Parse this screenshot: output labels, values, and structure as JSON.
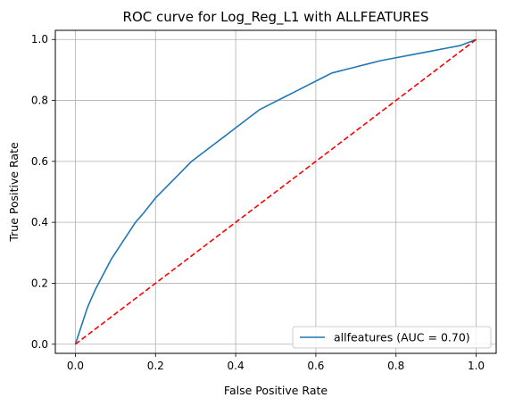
{
  "chart_data": {
    "type": "line",
    "title": "ROC curve for Log_Reg_L1 with ALLFEATURES",
    "xlabel": "False Positive Rate",
    "ylabel": "True Positive Rate",
    "xlim": [
      -0.05,
      1.05
    ],
    "ylim": [
      -0.03,
      1.03
    ],
    "xticks": [
      0.0,
      0.2,
      0.4,
      0.6,
      0.8,
      1.0
    ],
    "yticks": [
      0.0,
      0.2,
      0.4,
      0.6,
      0.8,
      1.0
    ],
    "xtick_labels": [
      "0.0",
      "0.2",
      "0.4",
      "0.6",
      "0.8",
      "1.0"
    ],
    "ytick_labels": [
      "0.0",
      "0.2",
      "0.4",
      "0.6",
      "0.8",
      "1.0"
    ],
    "grid": true,
    "legend_position": "lower-right",
    "series": [
      {
        "name": "allfeatures (AUC = 0.70)",
        "color": "#1f77b4",
        "style": "solid",
        "x": [
          0.0,
          0.01,
          0.02,
          0.03,
          0.05,
          0.07,
          0.09,
          0.11,
          0.13,
          0.15,
          0.17,
          0.2,
          0.23,
          0.26,
          0.29,
          0.32,
          0.35,
          0.38,
          0.4,
          0.43,
          0.46,
          0.49,
          0.52,
          0.55,
          0.58,
          0.61,
          0.64,
          0.67,
          0.7,
          0.73,
          0.76,
          0.8,
          0.84,
          0.88,
          0.92,
          0.96,
          1.0
        ],
        "y": [
          0.0,
          0.04,
          0.08,
          0.12,
          0.18,
          0.23,
          0.28,
          0.32,
          0.36,
          0.4,
          0.43,
          0.48,
          0.52,
          0.56,
          0.6,
          0.63,
          0.66,
          0.69,
          0.71,
          0.74,
          0.77,
          0.79,
          0.81,
          0.83,
          0.85,
          0.87,
          0.89,
          0.9,
          0.91,
          0.92,
          0.93,
          0.94,
          0.95,
          0.96,
          0.97,
          0.98,
          1.0
        ]
      },
      {
        "name": "",
        "color": "#ff0000",
        "style": "dashed",
        "x": [
          0.0,
          1.0
        ],
        "y": [
          0.0,
          1.0
        ]
      }
    ]
  }
}
